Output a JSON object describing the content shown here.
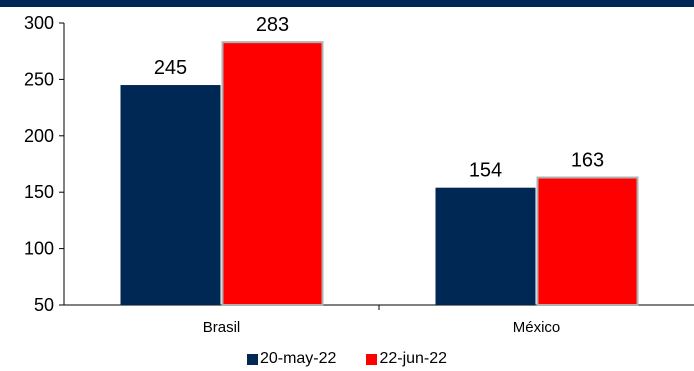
{
  "chart_data": {
    "type": "bar",
    "categories": [
      "Brasil",
      "México"
    ],
    "series": [
      {
        "name": "20-may-22",
        "values": [
          245,
          154
        ],
        "color": "#002855"
      },
      {
        "name": "22-jun-22",
        "values": [
          283,
          163
        ],
        "color": "#ff0000"
      }
    ],
    "ylim": [
      50,
      300
    ],
    "yticks": [
      50,
      100,
      150,
      200,
      250,
      300
    ],
    "title": "",
    "xlabel": "",
    "ylabel": "",
    "grid": false,
    "legend_position": "bottom",
    "top_band_color": "#002855"
  }
}
